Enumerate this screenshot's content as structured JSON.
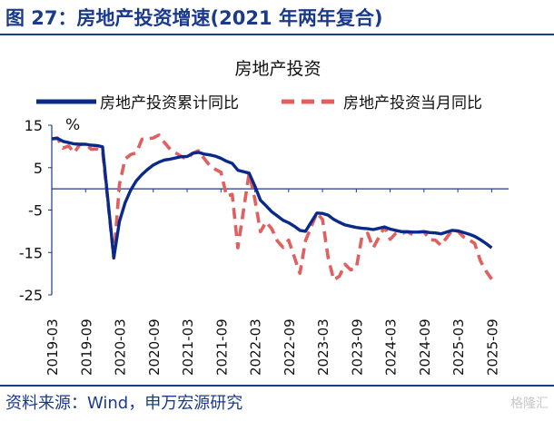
{
  "figure": {
    "title": "图 27：房地产投资增速(2021 年两年复合)",
    "source": "资料来源：Wind，申万宏源研究",
    "watermark": "格隆汇"
  },
  "colors": {
    "accent": "#1a3a8c",
    "series_solid": "#0a2a8a",
    "series_dashed": "#e06060",
    "axis": "#1a3a8c"
  },
  "chart_data": {
    "type": "line",
    "title": "房地产投资",
    "ylabel": "%",
    "xlabel": "",
    "ylim": [
      -25,
      15
    ],
    "yticks": [
      15,
      5,
      -5,
      -15,
      -25
    ],
    "xlim": [
      "2019-03",
      "2025-12"
    ],
    "xticks": [
      "2019-03",
      "2019-09",
      "2020-03",
      "2020-09",
      "2021-03",
      "2021-09",
      "2022-03",
      "2022-09",
      "2023-03",
      "2023-09",
      "2024-03",
      "2024-09",
      "2025-03",
      "2025-09"
    ],
    "grid": false,
    "legend": "top",
    "series": [
      {
        "name": "房地产投资累计同比",
        "style": "solid",
        "points": [
          [
            "2019-03",
            11.8
          ],
          [
            "2019-04",
            11.9
          ],
          [
            "2019-05",
            11.2
          ],
          [
            "2019-06",
            10.9
          ],
          [
            "2019-07",
            10.6
          ],
          [
            "2019-08",
            10.5
          ],
          [
            "2019-09",
            10.5
          ],
          [
            "2019-10",
            10.3
          ],
          [
            "2019-11",
            10.2
          ],
          [
            "2019-12",
            9.9
          ],
          [
            "2020-02",
            -16.3
          ],
          [
            "2020-03",
            -7.7
          ],
          [
            "2020-04",
            -3.3
          ],
          [
            "2020-05",
            -0.3
          ],
          [
            "2020-06",
            1.9
          ],
          [
            "2020-07",
            3.4
          ],
          [
            "2020-08",
            4.6
          ],
          [
            "2020-09",
            5.6
          ],
          [
            "2020-10",
            6.3
          ],
          [
            "2020-11",
            6.8
          ],
          [
            "2020-12",
            7.0
          ],
          [
            "2021-02",
            7.6
          ],
          [
            "2021-03",
            7.6
          ],
          [
            "2021-04",
            8.4
          ],
          [
            "2021-05",
            8.6
          ],
          [
            "2021-06",
            8.2
          ],
          [
            "2021-07",
            8.0
          ],
          [
            "2021-08",
            7.7
          ],
          [
            "2021-09",
            7.2
          ],
          [
            "2021-10",
            6.5
          ],
          [
            "2021-11",
            6.0
          ],
          [
            "2021-12",
            4.4
          ],
          [
            "2022-02",
            3.7
          ],
          [
            "2022-03",
            0.7
          ],
          [
            "2022-04",
            -2.7
          ],
          [
            "2022-05",
            -4.0
          ],
          [
            "2022-06",
            -5.4
          ],
          [
            "2022-07",
            -6.4
          ],
          [
            "2022-08",
            -7.4
          ],
          [
            "2022-09",
            -8.0
          ],
          [
            "2022-10",
            -8.8
          ],
          [
            "2022-11",
            -9.8
          ],
          [
            "2022-12",
            -10.0
          ],
          [
            "2023-02",
            -5.7
          ],
          [
            "2023-03",
            -5.8
          ],
          [
            "2023-04",
            -6.2
          ],
          [
            "2023-05",
            -7.2
          ],
          [
            "2023-06",
            -7.9
          ],
          [
            "2023-07",
            -8.5
          ],
          [
            "2023-08",
            -8.8
          ],
          [
            "2023-09",
            -9.1
          ],
          [
            "2023-10",
            -9.3
          ],
          [
            "2023-11",
            -9.4
          ],
          [
            "2023-12",
            -9.6
          ],
          [
            "2024-02",
            -9.0
          ],
          [
            "2024-03",
            -9.5
          ],
          [
            "2024-04",
            -9.8
          ],
          [
            "2024-05",
            -10.1
          ],
          [
            "2024-06",
            -10.1
          ],
          [
            "2024-07",
            -10.2
          ],
          [
            "2024-08",
            -10.2
          ],
          [
            "2024-09",
            -10.1
          ],
          [
            "2024-10",
            -10.3
          ],
          [
            "2024-11",
            -10.4
          ],
          [
            "2024-12",
            -10.6
          ],
          [
            "2025-02",
            -9.8
          ],
          [
            "2025-03",
            -9.9
          ],
          [
            "2025-04",
            -10.3
          ],
          [
            "2025-05",
            -10.7
          ],
          [
            "2025-06",
            -11.2
          ],
          [
            "2025-07",
            -12.0
          ],
          [
            "2025-08",
            -12.9
          ],
          [
            "2025-09",
            -13.9
          ]
        ]
      },
      {
        "name": "房地产投资当月同比",
        "style": "dashed",
        "points": [
          [
            "2019-03",
            11.8
          ],
          [
            "2019-04",
            12.0
          ],
          [
            "2019-05",
            9.6
          ],
          [
            "2019-06",
            10.1
          ],
          [
            "2019-07",
            8.5
          ],
          [
            "2019-08",
            10.5
          ],
          [
            "2019-09",
            10.5
          ],
          [
            "2019-10",
            9.3
          ],
          [
            "2019-11",
            9.4
          ],
          [
            "2019-12",
            9.0
          ],
          [
            "2020-02",
            -16.3
          ],
          [
            "2020-03",
            1.0
          ],
          [
            "2020-04",
            7.0
          ],
          [
            "2020-05",
            8.1
          ],
          [
            "2020-06",
            8.5
          ],
          [
            "2020-07",
            11.7
          ],
          [
            "2020-08",
            11.8
          ],
          [
            "2020-09",
            12.0
          ],
          [
            "2020-10",
            12.7
          ],
          [
            "2020-11",
            10.9
          ],
          [
            "2020-12",
            9.3
          ],
          [
            "2021-02",
            7.6
          ],
          [
            "2021-03",
            7.0
          ],
          [
            "2021-04",
            8.4
          ],
          [
            "2021-05",
            9.0
          ],
          [
            "2021-06",
            7.2
          ],
          [
            "2021-07",
            5.5
          ],
          [
            "2021-08",
            4.6
          ],
          [
            "2021-09",
            3.9
          ],
          [
            "2021-10",
            -1.7
          ],
          [
            "2021-11",
            -1.3
          ],
          [
            "2021-12",
            -13.9
          ],
          [
            "2022-02",
            3.7
          ],
          [
            "2022-03",
            -2.4
          ],
          [
            "2022-04",
            -10.1
          ],
          [
            "2022-05",
            -7.8
          ],
          [
            "2022-06",
            -9.4
          ],
          [
            "2022-07",
            -12.3
          ],
          [
            "2022-08",
            -13.8
          ],
          [
            "2022-09",
            -12.1
          ],
          [
            "2022-10",
            -16.0
          ],
          [
            "2022-11",
            -19.9
          ],
          [
            "2022-12",
            -12.2
          ],
          [
            "2023-02",
            -5.7
          ],
          [
            "2023-03",
            -7.2
          ],
          [
            "2023-04",
            -16.2
          ],
          [
            "2023-05",
            -21.5
          ],
          [
            "2023-06",
            -20.6
          ],
          [
            "2023-07",
            -17.8
          ],
          [
            "2023-08",
            -19.1
          ],
          [
            "2023-09",
            -18.7
          ],
          [
            "2023-10",
            -11.3
          ],
          [
            "2023-11",
            -10.5
          ],
          [
            "2023-12",
            -13.9
          ],
          [
            "2024-02",
            -9.0
          ],
          [
            "2024-03",
            -11.9
          ],
          [
            "2024-04",
            -10.5
          ],
          [
            "2024-05",
            -10.6
          ],
          [
            "2024-06",
            -10.1
          ],
          [
            "2024-07",
            -10.8
          ],
          [
            "2024-08",
            -10.2
          ],
          [
            "2024-09",
            -10.1
          ],
          [
            "2024-10",
            -12.0
          ],
          [
            "2024-11",
            -12.1
          ],
          [
            "2024-12",
            -13.3
          ],
          [
            "2025-02",
            -9.8
          ],
          [
            "2025-03",
            -10.0
          ],
          [
            "2025-04",
            -11.3
          ],
          [
            "2025-05",
            -12.0
          ],
          [
            "2025-06",
            -12.9
          ],
          [
            "2025-07",
            -17.0
          ],
          [
            "2025-08",
            -19.4
          ],
          [
            "2025-09",
            -21.3
          ]
        ]
      }
    ]
  }
}
